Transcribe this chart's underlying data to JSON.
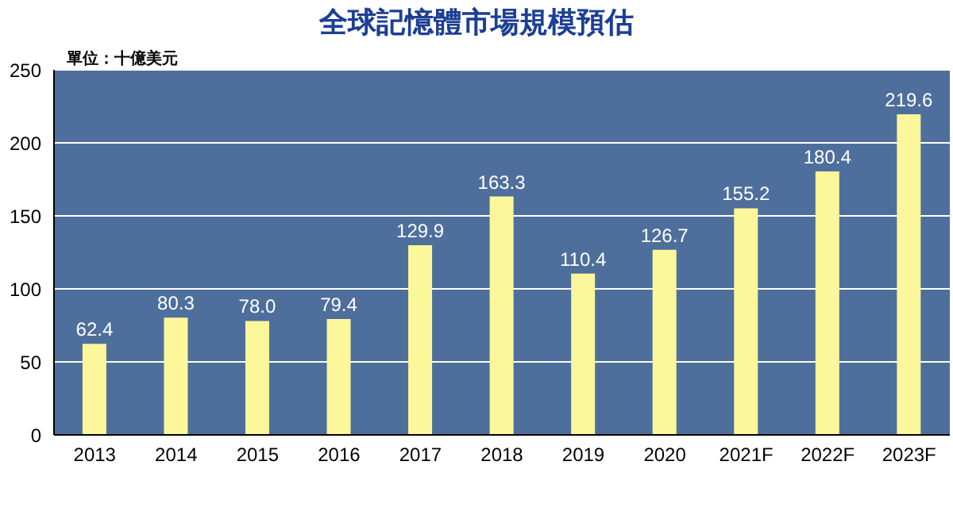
{
  "chart_data": {
    "type": "bar",
    "title": "全球記憶體市場規模預估",
    "subtitle": "單位：十億美元",
    "categories": [
      "2013",
      "2014",
      "2015",
      "2016",
      "2017",
      "2018",
      "2019",
      "2020",
      "2021F",
      "2022F",
      "2023F"
    ],
    "values": [
      62.4,
      80.3,
      78.0,
      79.4,
      129.9,
      163.3,
      110.4,
      126.7,
      155.2,
      180.4,
      219.6
    ],
    "value_labels": [
      "62.4",
      "80.3",
      "78.0",
      "79.4",
      "129.9",
      "163.3",
      "110.4",
      "126.7",
      "155.2",
      "180.4",
      "219.6"
    ],
    "color": "#fbf79a",
    "ylim": [
      0,
      250
    ],
    "yticks": [
      0,
      50,
      100,
      150,
      200,
      250
    ],
    "grid": "y",
    "legend": false
  }
}
